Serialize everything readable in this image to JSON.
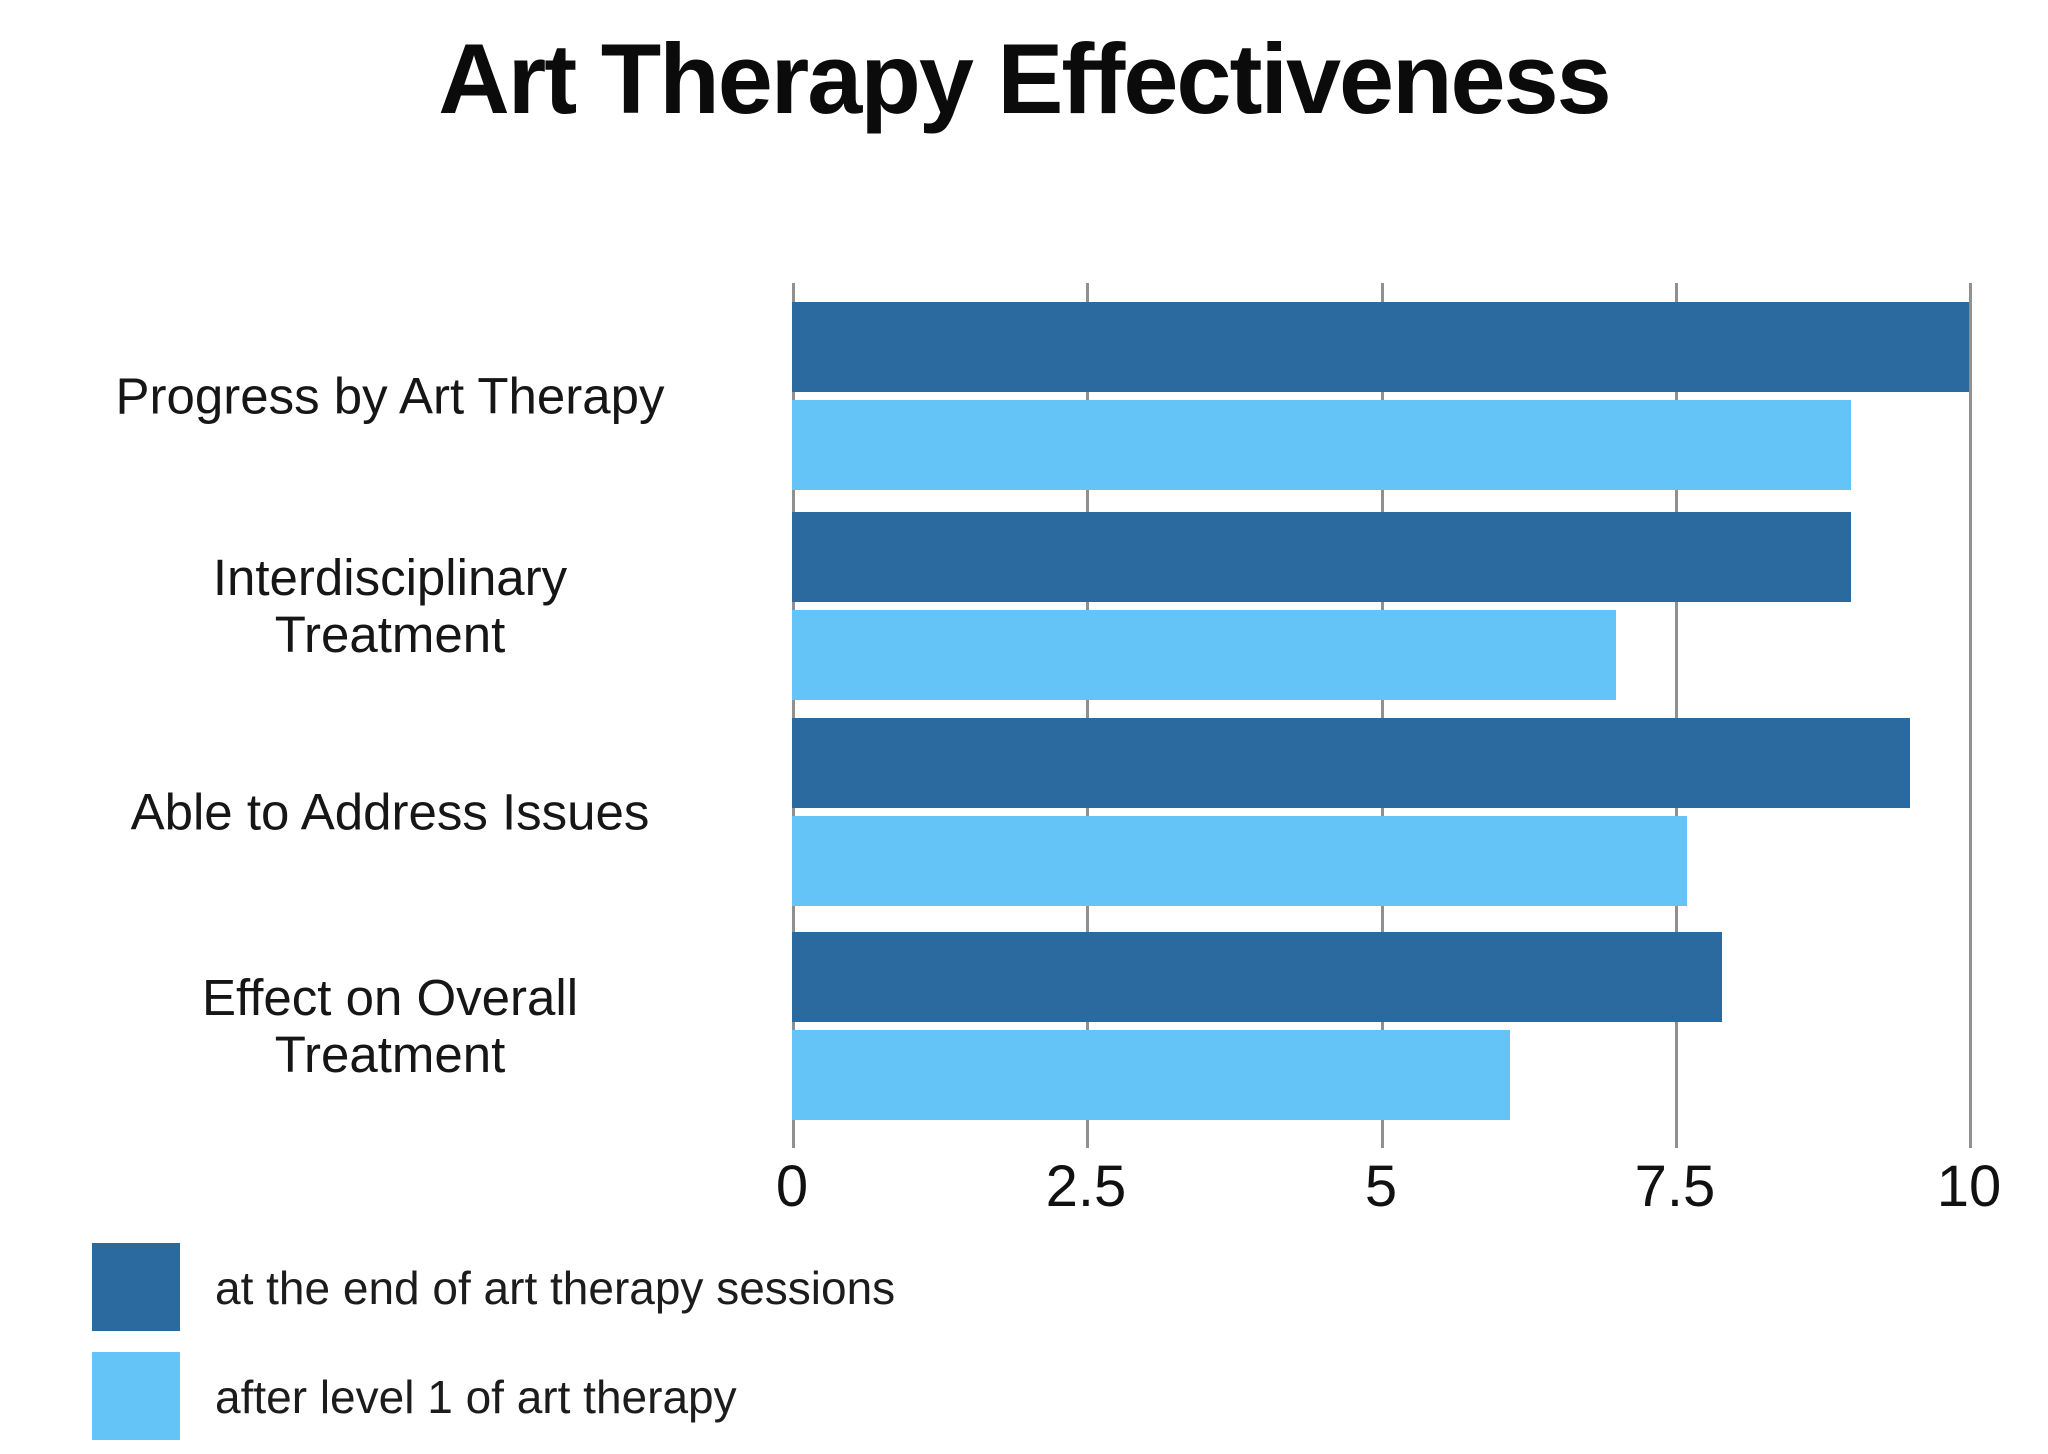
{
  "title": "Art Therapy Effectiveness",
  "colors": {
    "series_dark": "#2A6A9E",
    "series_light": "#64C4F8",
    "gridline": "#909090",
    "text": "#111111",
    "background": "#FFFFFF"
  },
  "chart_data": {
    "type": "bar",
    "orientation": "horizontal",
    "title": "Art Therapy Effectiveness",
    "categories": [
      "Progress by Art Therapy",
      "Interdisciplinary Treatment",
      "Able to Address Issues",
      "Effect on Overall Treatment"
    ],
    "category_label_lines": [
      [
        "Progress by Art Therapy"
      ],
      [
        "Interdisciplinary",
        "Treatment"
      ],
      [
        "Able to Address Issues"
      ],
      [
        "Effect on Overall",
        "Treatment"
      ]
    ],
    "series": [
      {
        "name": "at the end of art therapy sessions",
        "color": "#2A6A9E",
        "values": [
          10,
          9,
          9.5,
          7.9
        ]
      },
      {
        "name": "after level 1 of art therapy",
        "color": "#64C4F8",
        "values": [
          9,
          7,
          7.6,
          6.1
        ]
      }
    ],
    "xlabel": "",
    "ylabel": "",
    "xlim": [
      0,
      10
    ],
    "x_ticks": [
      0,
      2.5,
      5,
      7.5,
      10
    ],
    "x_tick_labels": [
      "0",
      "2.5",
      "5",
      "7.5",
      "10"
    ],
    "grid": true,
    "legend_position": "bottom-left"
  },
  "legend": {
    "items": [
      {
        "label": "at the end of art therapy sessions",
        "color": "#2A6A9E"
      },
      {
        "label": "after level 1 of art therapy",
        "color": "#64C4F8"
      }
    ]
  }
}
